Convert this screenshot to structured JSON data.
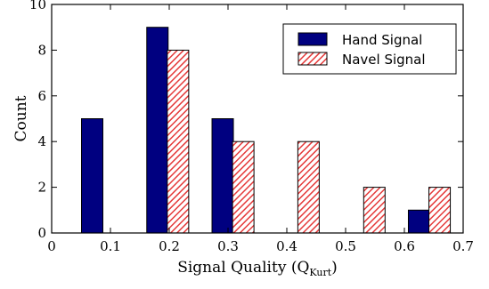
{
  "chart_data": {
    "type": "bar",
    "title": "",
    "xlabel_main": "Signal Quality (Q",
    "xlabel_sub": "Kurt",
    "xlabel_close": ")",
    "ylabel": "Count",
    "xlim": [
      0,
      0.7
    ],
    "ylim": [
      0,
      10
    ],
    "x_ticks": [
      0,
      0.1,
      0.2,
      0.3,
      0.4,
      0.5,
      0.6,
      0.7
    ],
    "x_tick_labels": [
      "0",
      "0.1",
      "0.2",
      "0.3",
      "0.4",
      "0.5",
      "0.6",
      "0.7"
    ],
    "y_ticks": [
      0,
      2,
      4,
      6,
      8,
      10
    ],
    "y_tick_labels": [
      "0",
      "2",
      "4",
      "6",
      "8",
      "10"
    ],
    "grid": false,
    "legend_position": "top-right",
    "bar_width": 0.033,
    "series": [
      {
        "name": "Hand Signal",
        "color": "#000080",
        "pattern": "solid",
        "x": [
          0.066,
          0.166,
          0.266,
          0.366,
          0.466,
          0.566,
          0.666
        ],
        "x_left": [
          0.05,
          0.15,
          0.25,
          0.35,
          0.45,
          0.55,
          0.65
        ],
        "values": [
          5,
          9,
          5,
          0,
          0,
          0,
          1
        ],
        "x_left_actual": [
          0.049,
          0.161,
          0.272,
          0.383,
          0.495,
          0.606,
          0.606
        ]
      },
      {
        "name": "Navel Signal",
        "color": "#e53a3a",
        "pattern": "hatched",
        "x_left": [
          0.084,
          0.196,
          0.307,
          0.418,
          0.53,
          0.641
        ],
        "values": [
          0,
          8,
          4,
          4,
          2,
          2
        ]
      }
    ]
  }
}
